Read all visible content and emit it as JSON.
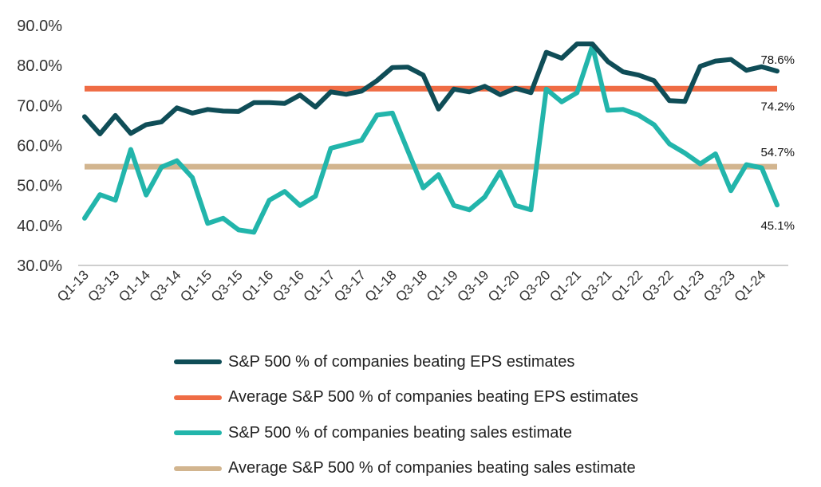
{
  "chart_data": {
    "type": "line",
    "title": "",
    "xlabel": "",
    "ylabel": "",
    "ylim": [
      30,
      90
    ],
    "yticks": [
      "30.0%",
      "40.0%",
      "50.0%",
      "60.0%",
      "70.0%",
      "80.0%",
      "90.0%"
    ],
    "ytick_values": [
      30,
      40,
      50,
      60,
      70,
      80,
      90
    ],
    "x": [
      "Q1-13",
      "Q2-13",
      "Q3-13",
      "Q4-13",
      "Q1-14",
      "Q2-14",
      "Q3-14",
      "Q4-14",
      "Q1-15",
      "Q2-15",
      "Q3-15",
      "Q4-15",
      "Q1-16",
      "Q2-16",
      "Q3-16",
      "Q4-16",
      "Q1-17",
      "Q2-17",
      "Q3-17",
      "Q4-17",
      "Q1-18",
      "Q2-18",
      "Q3-18",
      "Q4-18",
      "Q1-19",
      "Q2-19",
      "Q3-19",
      "Q4-19",
      "Q1-20",
      "Q2-20",
      "Q3-20",
      "Q4-20",
      "Q1-21",
      "Q2-21",
      "Q3-21",
      "Q4-21",
      "Q1-22",
      "Q2-22",
      "Q3-22",
      "Q4-22",
      "Q1-23",
      "Q2-23",
      "Q3-23",
      "Q4-23",
      "Q1-24",
      "Q2-24"
    ],
    "xtick_labels": [
      "Q1-13",
      "Q3-13",
      "Q1-14",
      "Q3-14",
      "Q1-15",
      "Q3-15",
      "Q1-16",
      "Q3-16",
      "Q1-17",
      "Q3-17",
      "Q1-18",
      "Q3-18",
      "Q1-19",
      "Q3-19",
      "Q1-20",
      "Q3-20",
      "Q1-21",
      "Q3-21",
      "Q1-22",
      "Q3-22",
      "Q1-23",
      "Q3-23",
      "Q1-24"
    ],
    "grid": false,
    "legend_position": "bottom",
    "series": [
      {
        "name": "S&P 500 % of companies beating EPS estimates",
        "color": "#0f4d57",
        "style": "line",
        "values": [
          67.2,
          62.9,
          67.5,
          63.0,
          65.2,
          65.9,
          69.4,
          68.1,
          69.0,
          68.6,
          68.5,
          70.7,
          70.7,
          70.5,
          72.6,
          69.6,
          73.4,
          72.8,
          73.6,
          76.2,
          79.5,
          79.6,
          77.6,
          69.1,
          74.1,
          73.4,
          74.8,
          72.7,
          74.3,
          73.2,
          83.3,
          81.8,
          85.4,
          85.4,
          81.0,
          78.4,
          77.6,
          76.2,
          71.2,
          71.0,
          79.8,
          81.1,
          81.5,
          78.8,
          79.7,
          78.6
        ]
      },
      {
        "name": "Average S&P 500 % of companies beating EPS estimates",
        "color": "#ef6c45",
        "style": "hline",
        "value": 74.2
      },
      {
        "name": "S&P 500 % of companies beating sales estimate",
        "color": "#22b5ab",
        "style": "line",
        "values": [
          41.8,
          47.7,
          46.3,
          59.0,
          47.6,
          54.6,
          56.2,
          52.0,
          40.5,
          41.8,
          38.9,
          38.3,
          46.3,
          48.5,
          45.0,
          47.3,
          59.3,
          60.3,
          61.3,
          67.6,
          68.1,
          58.7,
          49.4,
          52.7,
          45.0,
          43.9,
          47.1,
          53.4,
          45.0,
          43.9,
          74.1,
          70.9,
          73.2,
          84.9,
          68.8,
          69.0,
          67.6,
          65.2,
          60.4,
          58.1,
          55.4,
          57.9,
          48.7,
          55.2,
          54.4,
          45.1
        ]
      },
      {
        "name": "Average S&P 500 % of companies beating sales estimate",
        "color": "#d2b58f",
        "style": "hline",
        "value": 54.7
      }
    ],
    "annotations": [
      {
        "text": "78.6%",
        "series": 0,
        "at": "end"
      },
      {
        "text": "74.2%",
        "series": 1,
        "at": "end"
      },
      {
        "text": "54.7%",
        "series": 3,
        "at": "end"
      },
      {
        "text": "45.1%",
        "series": 2,
        "at": "end"
      }
    ]
  }
}
